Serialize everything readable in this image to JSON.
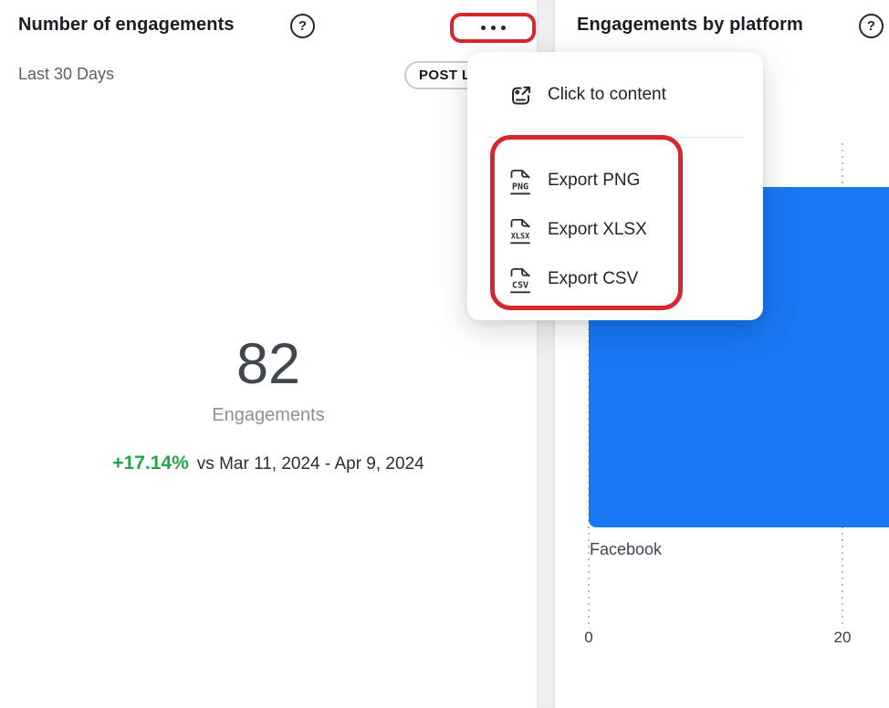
{
  "engagement_card": {
    "title": "Number of engagements",
    "help_glyph": "?",
    "period_label": "Last 30 Days",
    "badge_label": "POST L",
    "metric": {
      "value": "82",
      "label": "Engagements"
    },
    "comparison": {
      "delta": "+17.14%",
      "versus": "vs Mar 11, 2024 - Apr 9, 2024"
    },
    "colors": {
      "delta_green": "#27A348"
    }
  },
  "platform_card": {
    "title": "Engagements by platform",
    "help_glyph": "?"
  },
  "context_menu": {
    "primary_item": {
      "label": "Click to content",
      "icon": "open-content-icon"
    },
    "export_items": [
      {
        "label": "Export PNG",
        "file_type": "PNG",
        "icon": "file-png-icon"
      },
      {
        "label": "Export XLSX",
        "file_type": "XLSX",
        "icon": "file-xlsx-icon"
      },
      {
        "label": "Export CSV",
        "file_type": "CSV",
        "icon": "file-csv-icon"
      }
    ]
  },
  "chart_data": {
    "type": "bar",
    "orientation": "horizontal",
    "title": "Engagements by platform",
    "categories": [
      "Facebook"
    ],
    "series": [
      {
        "name": "Engagements",
        "values": [
          24
        ]
      }
    ],
    "bar_clipped_at_right_edge": true,
    "x_axis": {
      "ticks": [
        0,
        20
      ],
      "tick_labels": [
        "0",
        "20"
      ],
      "visible_range": [
        0,
        23.7
      ]
    },
    "grid": "dotted-vertical-gridlines",
    "legend": "none",
    "bar_color": "#1877F2"
  },
  "annotations": {
    "highlight_color": "#D7262C",
    "highlighted_elements": [
      "card-menu-button",
      "export-menu-items"
    ]
  }
}
